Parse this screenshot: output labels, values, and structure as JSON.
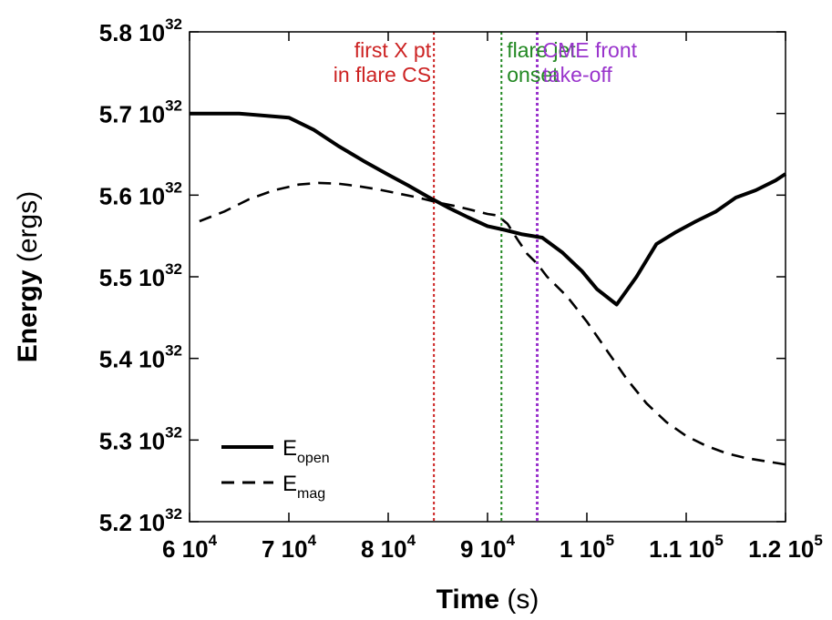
{
  "chart_data": {
    "type": "line",
    "xlabel": "Time",
    "xlabel_unit": "(s)",
    "ylabel": "Energy",
    "ylabel_unit": "(ergs)",
    "xlim": [
      60000,
      120000
    ],
    "ylim": [
      5.2e+32,
      5.8e+32
    ],
    "x_ticks": [
      {
        "value": 60000,
        "mantissa": "6",
        "exp": "4"
      },
      {
        "value": 70000,
        "mantissa": "7",
        "exp": "4"
      },
      {
        "value": 80000,
        "mantissa": "8",
        "exp": "4"
      },
      {
        "value": 90000,
        "mantissa": "9",
        "exp": "4"
      },
      {
        "value": 100000,
        "mantissa": "1",
        "exp": "5"
      },
      {
        "value": 110000,
        "mantissa": "1.1",
        "exp": "5"
      },
      {
        "value": 120000,
        "mantissa": "1.2",
        "exp": "5"
      }
    ],
    "y_ticks": [
      {
        "value": 5.2e+32,
        "mantissa": "5.2",
        "exp": "32"
      },
      {
        "value": 5.3e+32,
        "mantissa": "5.3",
        "exp": "32"
      },
      {
        "value": 5.4e+32,
        "mantissa": "5.4",
        "exp": "32"
      },
      {
        "value": 5.5e+32,
        "mantissa": "5.5",
        "exp": "32"
      },
      {
        "value": 5.6e+32,
        "mantissa": "5.6",
        "exp": "32"
      },
      {
        "value": 5.7e+32,
        "mantissa": "5.7",
        "exp": "32"
      },
      {
        "value": 5.8e+32,
        "mantissa": "5.8",
        "exp": "32"
      }
    ],
    "tick_base": "10",
    "grid": false,
    "legend_position": "bottom-left",
    "series": [
      {
        "name": "E",
        "subscript": "open",
        "style": "solid",
        "x": [
          60000,
          65000,
          70000,
          72500,
          75000,
          77500,
          80000,
          82000,
          84000,
          86000,
          88000,
          90000,
          91500,
          93500,
          95500,
          97500,
          99500,
          101000,
          103000,
          105000,
          107000,
          109000,
          111000,
          113000,
          115000,
          117000,
          119000,
          120000
        ],
        "y": [
          5.7e+32,
          5.7e+32,
          5.695e+32,
          5.68e+32,
          5.66e+32,
          5.642e+32,
          5.625e+32,
          5.612e+32,
          5.598e+32,
          5.585e+32,
          5.573e+32,
          5.562e+32,
          5.558e+32,
          5.552e+32,
          5.548e+32,
          5.53e+32,
          5.507e+32,
          5.485e+32,
          5.466e+32,
          5.5e+32,
          5.54e+32,
          5.555e+32,
          5.568e+32,
          5.58e+32,
          5.597e+32,
          5.606e+32,
          5.618e+32,
          5.626e+32
        ]
      },
      {
        "name": "E",
        "subscript": "mag",
        "style": "dashed",
        "x": [
          61000,
          63500,
          66000,
          68500,
          71000,
          73000,
          75000,
          77000,
          79000,
          81000,
          83000,
          85000,
          87000,
          89000,
          90000,
          91000,
          92000,
          93000,
          94000,
          95000,
          96000,
          98000,
          100000,
          102000,
          104000,
          106000,
          108000,
          110000,
          112000,
          114000,
          116000,
          118000,
          120000
        ],
        "y": [
          5.568e+32,
          5.58e+32,
          5.595e+32,
          5.606e+32,
          5.613e+32,
          5.615e+32,
          5.614e+32,
          5.611e+32,
          5.607e+32,
          5.602e+32,
          5.597e+32,
          5.591e+32,
          5.586e+32,
          5.58e+32,
          5.577e+32,
          5.575e+32,
          5.565e+32,
          5.546e+32,
          5.528e+32,
          5.516e+32,
          5.5e+32,
          5.476e+32,
          5.445e+32,
          5.41e+32,
          5.375e+32,
          5.345e+32,
          5.322e+32,
          5.305e+32,
          5.293e+32,
          5.284e+32,
          5.278e+32,
          5.274e+32,
          5.27e+32
        ]
      }
    ],
    "markers": [
      {
        "x": 84600,
        "color": "#cc2222",
        "dash": "3,3",
        "label_lines": [
          "first X pt",
          "in flare CS"
        ]
      },
      {
        "x": 91400,
        "color": "#228822",
        "dash": "3,3",
        "label_lines": [
          "flare jet",
          "onset"
        ]
      },
      {
        "x": 95000,
        "color": "#9933cc",
        "dash": "3,3",
        "label_lines": [
          "CME front",
          "take-off"
        ]
      }
    ]
  }
}
